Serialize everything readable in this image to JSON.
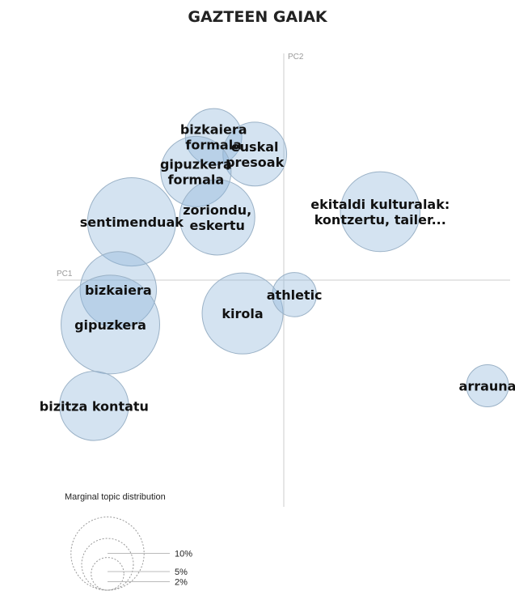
{
  "chart_data": {
    "type": "scatter",
    "title": "GAZTEEN GAIAK",
    "xlabel": "PC1",
    "ylabel": "PC2",
    "xlim": [
      -1,
      1
    ],
    "ylim": [
      -1,
      1
    ],
    "topics": [
      {
        "label_lines": [
          "bizkaiera",
          "formala"
        ],
        "x": -0.31,
        "y": 0.632,
        "size": 1.8
      },
      {
        "label_lines": [
          "euskal",
          "presoak"
        ],
        "x": -0.128,
        "y": 0.556,
        "size": 2.3
      },
      {
        "label_lines": [
          "gipuzkera",
          "formala"
        ],
        "x": -0.388,
        "y": 0.479,
        "size": 2.8
      },
      {
        "label_lines": [
          "zoriondu,",
          "eskertu"
        ],
        "x": -0.294,
        "y": 0.277,
        "size": 3.2
      },
      {
        "label_lines": [
          "sentimenduak"
        ],
        "x": -0.672,
        "y": 0.257,
        "size": 4.4
      },
      {
        "label_lines": [
          "ekitaldi kulturalak:",
          "kontzertu, tailer..."
        ],
        "x": 0.426,
        "y": 0.302,
        "size": 3.6
      },
      {
        "label_lines": [
          "bizkaiera"
        ],
        "x": -0.731,
        "y": -0.043,
        "size": 3.3
      },
      {
        "label_lines": [
          "gipuzkera"
        ],
        "x": -0.766,
        "y": -0.196,
        "size": 5.5
      },
      {
        "label_lines": [
          "kirola"
        ],
        "x": -0.182,
        "y": -0.147,
        "size": 3.7
      },
      {
        "label_lines": [
          "athletic"
        ],
        "x": 0.047,
        "y": -0.064,
        "size": 1.1
      },
      {
        "label_lines": [
          "arrauna"
        ],
        "x": 0.9,
        "y": -0.466,
        "size": 1.0
      },
      {
        "label_lines": [
          "bizitza kontatu"
        ],
        "x": -0.838,
        "y": -0.555,
        "size": 2.7
      }
    ],
    "legend": {
      "title": "Marginal topic distribution",
      "entries": [
        {
          "label": "2%",
          "value": 2
        },
        {
          "label": "5%",
          "value": 5
        },
        {
          "label": "10%",
          "value": 10
        }
      ]
    }
  }
}
